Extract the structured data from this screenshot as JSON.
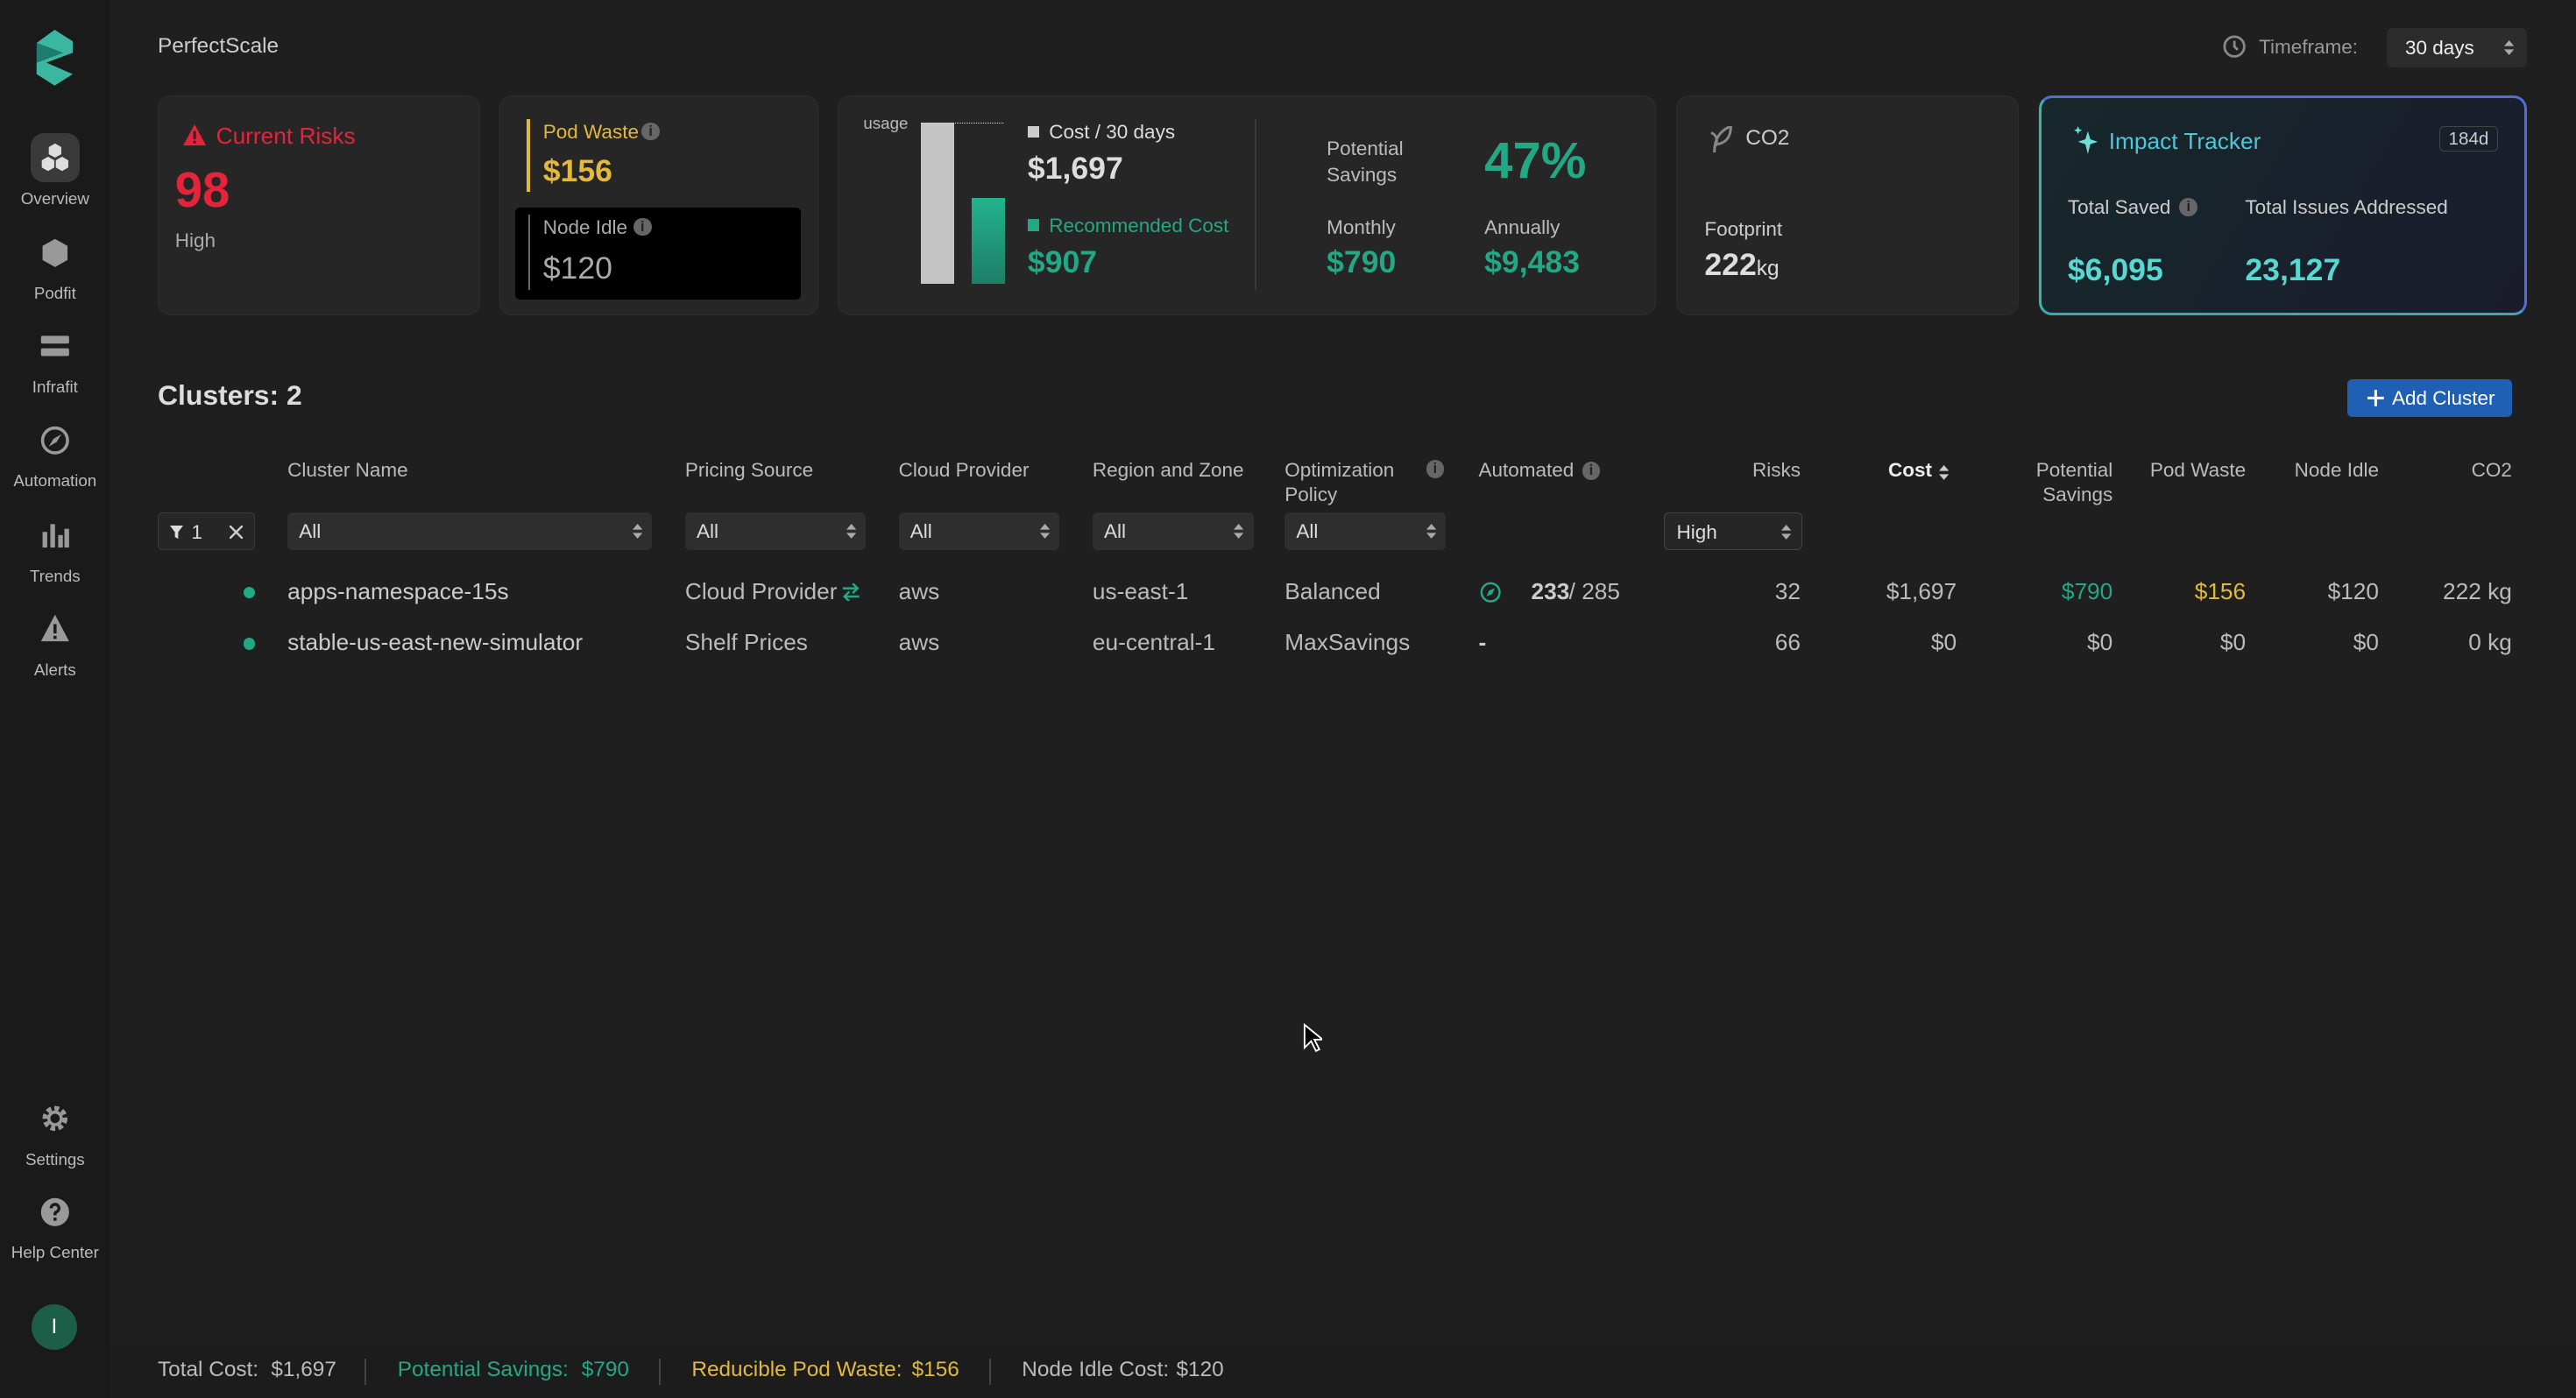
{
  "app": {
    "title": "PerfectScale"
  },
  "sidebar": {
    "items": [
      {
        "label": "Overview",
        "icon": "overview-icon"
      },
      {
        "label": "Podfit",
        "icon": "podfit-icon"
      },
      {
        "label": "Infrafit",
        "icon": "infrafit-icon"
      },
      {
        "label": "Automation",
        "icon": "automation-icon"
      },
      {
        "label": "Trends",
        "icon": "trends-icon"
      },
      {
        "label": "Alerts",
        "icon": "alerts-icon"
      }
    ],
    "bottom": [
      {
        "label": "Settings",
        "icon": "gear-icon"
      },
      {
        "label": "Help Center",
        "icon": "help-icon"
      }
    ],
    "avatar": "I"
  },
  "timeframe": {
    "label": "Timeframe:",
    "value": "30 days"
  },
  "risks": {
    "title": "Current Risks",
    "value": "98",
    "level": "High"
  },
  "pod_waste": {
    "label": "Pod Waste",
    "value": "$156"
  },
  "node_idle": {
    "label": "Node Idle",
    "value": "$120"
  },
  "cost": {
    "usage_label": "usage",
    "cost_label": "Cost / 30 days",
    "cost_value": "$1,697",
    "rec_label": "Recommended Cost",
    "rec_value": "$907",
    "potential_label": "Potential Savings",
    "potential_pct": "47%",
    "monthly_label": "Monthly",
    "monthly_value": "$790",
    "annually_label": "Annually",
    "annually_value": "$9,483"
  },
  "co2": {
    "title": "CO2",
    "footprint_label": "Footprint",
    "value": "222",
    "unit": "kg"
  },
  "impact": {
    "title": "Impact Tracker",
    "badge": "184d",
    "saved_label": "Total Saved",
    "saved_value": "$6,095",
    "issues_label": "Total Issues Addressed",
    "issues_value": "23,127"
  },
  "clusters": {
    "title": "Clusters: 2",
    "add_button": "Add Cluster",
    "columns": {
      "name": "Cluster Name",
      "pricing": "Pricing Source",
      "cloud": "Cloud Provider",
      "region": "Region and Zone",
      "policy": "Optimization Policy",
      "automated": "Automated",
      "risks": "Risks",
      "cost": "Cost",
      "savings": "Potential Savings",
      "podwaste": "Pod Waste",
      "nodeidle": "Node Idle",
      "co2": "CO2"
    },
    "filters": {
      "count": "1",
      "name": "All",
      "pricing": "All",
      "cloud": "All",
      "region": "All",
      "policy": "All",
      "risks": "High"
    },
    "rows": [
      {
        "name": "apps-namespace-15s",
        "pricing": "Cloud Provider",
        "cloud": "aws",
        "region": "us-east-1",
        "policy": "Balanced",
        "automated": "233",
        "automated_total": "/ 285",
        "risks": "32",
        "cost": "$1,697",
        "savings": "$790",
        "podwaste": "$156",
        "nodeidle": "$120",
        "co2": "222 kg"
      },
      {
        "name": "stable-us-east-new-simulator",
        "pricing": "Shelf Prices",
        "cloud": "aws",
        "region": "eu-central-1",
        "policy": "MaxSavings",
        "automated": "-",
        "automated_total": "",
        "risks": "66",
        "cost": "$0",
        "savings": "$0",
        "podwaste": "$0",
        "nodeidle": "$0",
        "co2": "0 kg"
      }
    ]
  },
  "footer": {
    "total_cost_label": "Total Cost:",
    "total_cost": "$1,697",
    "savings_label": "Potential Savings:",
    "savings": "$790",
    "pod_waste_label": "Reducible Pod Waste:",
    "pod_waste": "$156",
    "node_idle_label": "Node Idle Cost:",
    "node_idle": "$120"
  },
  "colors": {
    "accent": "#22a884",
    "risk": "#e5243b",
    "waste": "#e2b93b",
    "button": "#1f5fb4"
  }
}
